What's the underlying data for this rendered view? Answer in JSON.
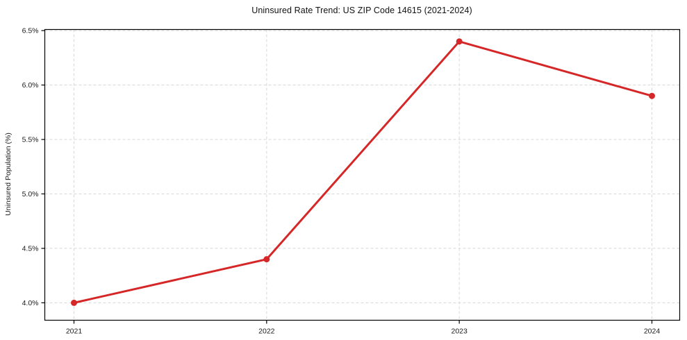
{
  "chart_data": {
    "type": "line",
    "title": "Uninsured Rate Trend: US ZIP Code 14615 (2021-2024)",
    "xlabel": "",
    "ylabel": "Uninsured Population (%)",
    "x": [
      "2021",
      "2022",
      "2023",
      "2024"
    ],
    "values": [
      4.0,
      4.4,
      6.4,
      5.9
    ],
    "yticks": [
      4.0,
      4.5,
      5.0,
      5.5,
      6.0,
      6.5
    ],
    "ytick_labels": [
      "4.0%",
      "4.5%",
      "5.0%",
      "5.5%",
      "6.0%",
      "6.5%"
    ],
    "ylim": [
      3.84,
      6.51
    ],
    "grid": true,
    "grid_style": "dashed",
    "legend": "none",
    "line_color": "#d62728",
    "marker": "circle",
    "gridline_color": "#d8d8d8",
    "spine_color": "#000000",
    "text_color": "#1a1a1a",
    "background": "#ffffff"
  }
}
